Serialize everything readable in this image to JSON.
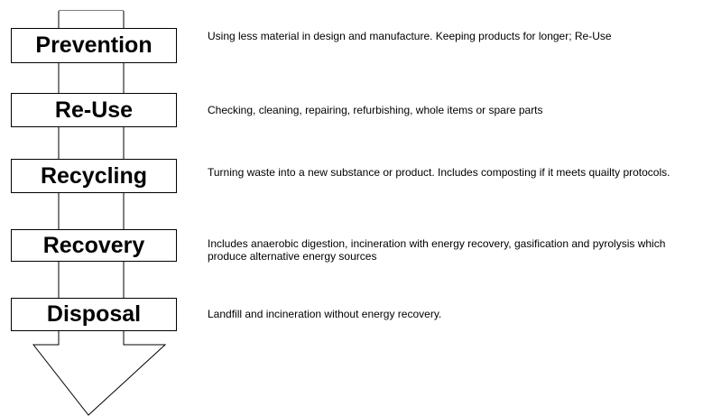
{
  "nodes": [
    {
      "label": "Prevention",
      "description": "Using less material in design and manufacture. Keeping products for longer; Re-Use"
    },
    {
      "label": "Re-Use",
      "description": "Checking, cleaning, repairing, refurbishing, whole items or spare parts"
    },
    {
      "label": "Recycling",
      "description": "Turning waste into a new substance or product. Includes composting if it meets quailty protocols."
    },
    {
      "label": "Recovery",
      "description": "Includes anaerobic digestion, incineration with energy recovery, gasification and pyrolysis which produce alternative energy sources"
    },
    {
      "label": "Disposal",
      "description": "Landfill and incineration without energy recovery."
    }
  ]
}
